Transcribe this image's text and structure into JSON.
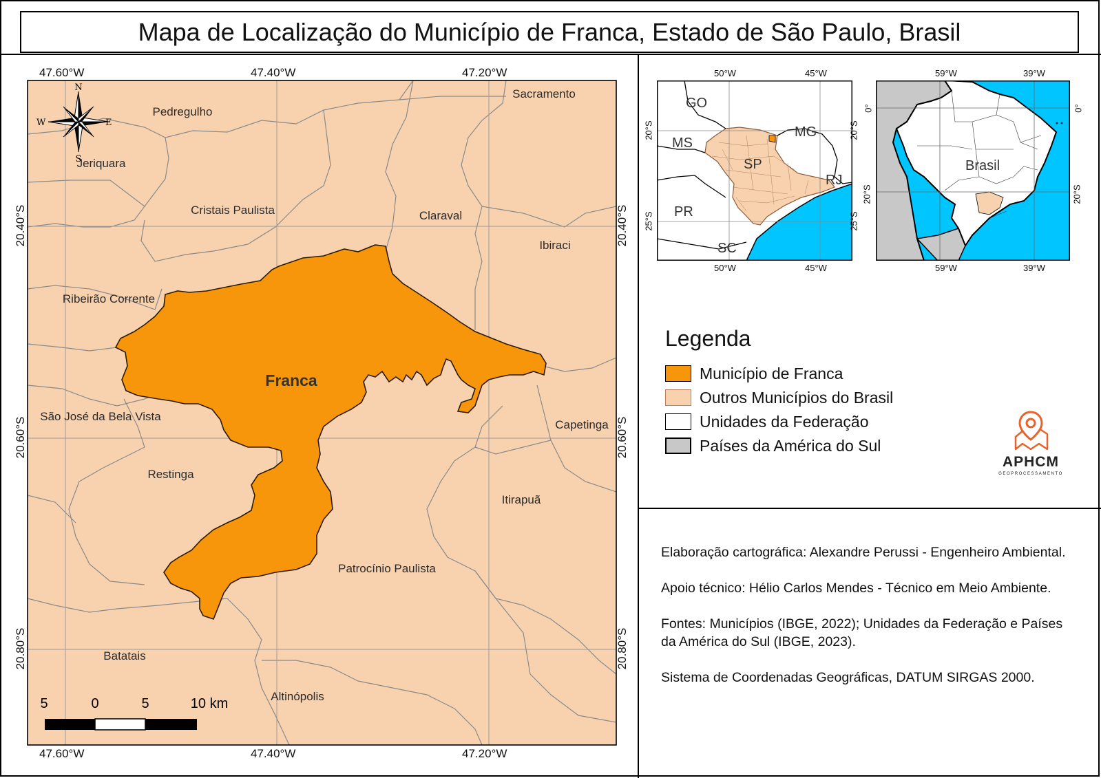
{
  "title": "Mapa de Localização do Município de Franca, Estado de São Paulo, Brasil",
  "main_map": {
    "top_coords": [
      "47.60°W",
      "47.40°W",
      "47.20°W"
    ],
    "bottom_coords": [
      "47.60°W",
      "47.40°W",
      "47.20°W"
    ],
    "left_coords": [
      "20.40°S",
      "20.60°S",
      "20.80°S"
    ],
    "right_coords": [
      "20.40°S",
      "20.60°S",
      "20.80°S"
    ],
    "municipality_labels": {
      "franca": "Franca",
      "sacramento": "Sacramento",
      "pedregulho": "Pedregulho",
      "jeriquara": "Jeriquara",
      "cristais": "Cristais Paulista",
      "claraval": "Claraval",
      "ibiraci": "Ibiraci",
      "ribeirao": "Ribeirão Corrente",
      "sjbv": "São José da Bela Vista",
      "capetinga": "Capetinga",
      "restinga": "Restinga",
      "itirapua": "Itirapuã",
      "patrocinio": "Patrocínio Paulista",
      "batatais": "Batatais",
      "altinopolis": "Altinópolis"
    },
    "compass": {
      "n": "N",
      "s": "S",
      "e": "E",
      "w": "W"
    },
    "scale_labels": [
      "5",
      "0",
      "5",
      "10 km"
    ],
    "colors": {
      "franca": "#F7960A",
      "others": "#F8D2AF",
      "grid": "#9a9a9a",
      "boundary": "#8a8a8a"
    }
  },
  "inset_state": {
    "top_coords": [
      "50°W",
      "45°W"
    ],
    "bottom_coords": [
      "50°W",
      "45°W"
    ],
    "left_coords": [
      "20°S",
      "25°S"
    ],
    "right_coords": [
      "20°S",
      "25°S"
    ],
    "labels": {
      "go": "GO",
      "ms": "MS",
      "mg": "MG",
      "sp": "SP",
      "rj": "RJ",
      "pr": "PR",
      "sc": "SC"
    },
    "colors": {
      "ocean": "#00C5FF",
      "state": "#F8D2AF",
      "land": "#ffffff"
    }
  },
  "inset_brazil": {
    "top_coords": [
      "59°W",
      "39°W"
    ],
    "bottom_coords": [
      "59°W",
      "39°W"
    ],
    "left_coords": [
      "0°",
      "20°S"
    ],
    "right_coords": [
      "0°",
      "20°S"
    ],
    "label": "Brasil",
    "colors": {
      "ocean": "#00C5FF",
      "south_america": "#C8C8C8",
      "brazil": "#ffffff",
      "sp": "#F8D2AF"
    }
  },
  "legend": {
    "title": "Legenda",
    "items": [
      {
        "label": "Município de Franca",
        "color": "#F7960A",
        "border": "#000000"
      },
      {
        "label": "Outros Municípios do Brasil",
        "color": "#F8D2AF",
        "border": "#c08060"
      },
      {
        "label": "Unidades da Federação",
        "color": "#ffffff",
        "border": "#000000"
      },
      {
        "label": "Países da América do Sul",
        "color": "#C8C8C8",
        "border": "#000000"
      }
    ]
  },
  "logo": {
    "name": "APHCM",
    "subtitle": "GEOPROCESSAMENTO",
    "color": "#E8632B"
  },
  "credits": {
    "author": "Elaboração cartográfica: Alexandre Perussi - Engenheiro Ambiental.",
    "support": "Apoio técnico: Hélio Carlos Mendes - Técnico em Meio Ambiente.",
    "sources": "Fontes: Municípios (IBGE, 2022); Unidades da Federação e Países da América do Sul (IBGE, 2023).",
    "crs": "Sistema de Coordenadas Geográficas, DATUM SIRGAS 2000."
  }
}
